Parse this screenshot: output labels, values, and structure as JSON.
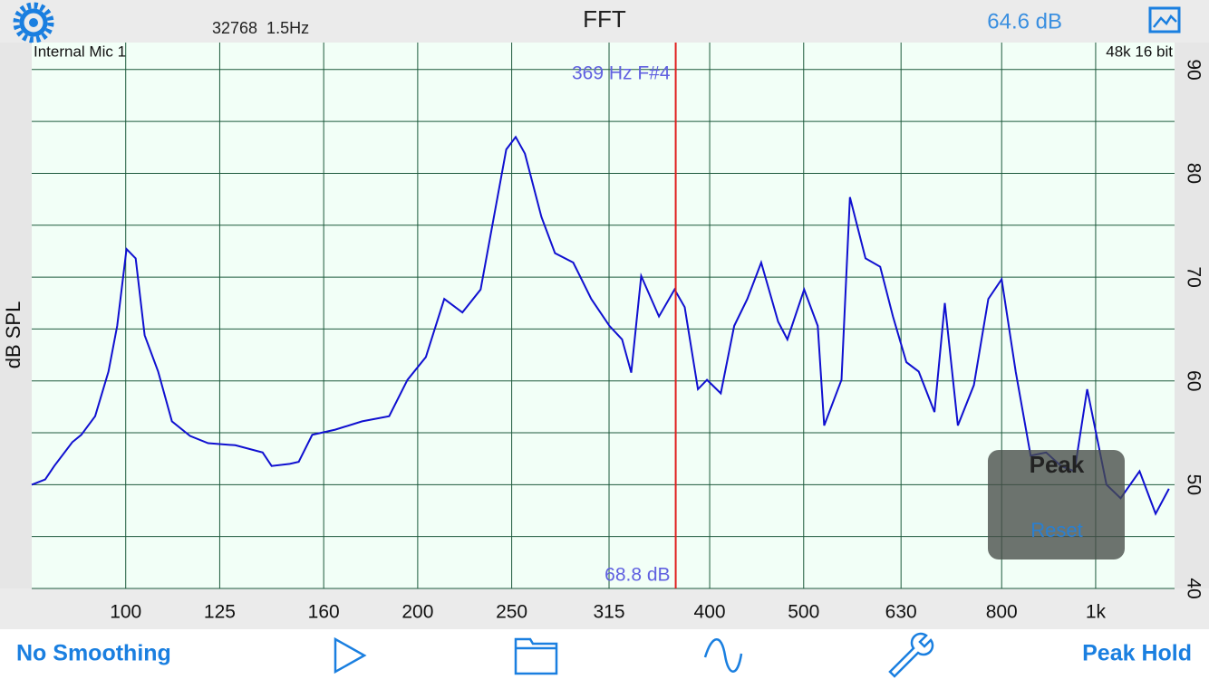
{
  "header": {
    "fft_size": "32768  1.5Hz",
    "title": "FFT",
    "level": "64.6 dB"
  },
  "input_label": "Internal Mic 1",
  "format_label": "48k 16 bit",
  "chart_data": {
    "type": "line",
    "ylabel": "dB SPL",
    "xscale": "log",
    "xlim": [
      80,
      1206
    ],
    "ylim": [
      40,
      92.6
    ],
    "xticks": [
      100,
      125,
      160,
      200,
      250,
      315,
      400,
      500,
      630,
      800,
      {
        "value": 1000,
        "label": "1k"
      }
    ],
    "yticks": [
      40,
      50,
      60,
      70,
      80,
      90
    ],
    "yminor": [
      45,
      55,
      65,
      75,
      85
    ],
    "grid": true,
    "color": "#1010d0",
    "cursor": {
      "x": 369,
      "freq_label": "369 Hz F#4",
      "level_label": "68.8 dB",
      "color": "#e02020"
    },
    "x": [
      80,
      82.6,
      84.4,
      88.1,
      90,
      93,
      96,
      98,
      100.2,
      102.4,
      104.6,
      108,
      111.6,
      116.5,
      121.6,
      129.7,
      138.4,
      141.4,
      147.6,
      150.8,
      155.7,
      164.4,
      175.3,
      186.9,
      195.2,
      203.9,
      213,
      222.4,
      232.2,
      240.1,
      246.8,
      252.4,
      258,
      268.3,
      277.1,
      289.3,
      302,
      315.3,
      324.9,
      332,
      340,
      354.6,
      368,
      377,
      389,
      397.5,
      410.7,
      424,
      437.4,
      452,
      470.6,
      481,
      500.6,
      517,
      525,
      547,
      558,
      579,
      599.6,
      618,
      638,
      657,
      682,
      699,
      721,
      749,
      775,
      800,
      827,
      857,
      889,
      921,
      951,
      980,
      1026,
      1061,
      1110,
      1153,
      1190
    ],
    "values": [
      50.0,
      50.5,
      51.8,
      54.1,
      54.8,
      56.6,
      60.9,
      65.3,
      72.7,
      71.8,
      64.4,
      60.9,
      56.1,
      54.7,
      54.0,
      53.8,
      53.1,
      51.8,
      52.0,
      52.2,
      54.8,
      55.3,
      56.1,
      56.6,
      60.1,
      62.3,
      67.9,
      66.6,
      68.8,
      76.2,
      82.3,
      83.5,
      81.9,
      75.8,
      72.3,
      71.4,
      67.9,
      65.3,
      64.0,
      60.8,
      70.1,
      66.2,
      68.8,
      67.1,
      59.2,
      60.1,
      58.8,
      65.3,
      67.9,
      71.4,
      65.7,
      64.0,
      68.8,
      65.3,
      55.7,
      60.1,
      77.7,
      71.8,
      71.0,
      66.2,
      61.8,
      60.9,
      57.0,
      67.5,
      55.7,
      59.6,
      67.9,
      69.8,
      60.9,
      52.8,
      53.1,
      51.8,
      51.3,
      59.2,
      50.0,
      48.7,
      51.3,
      47.2,
      49.6
    ]
  },
  "peak_panel": {
    "title": "Peak",
    "button": "Reset"
  },
  "toolbar": {
    "left": "No Smoothing",
    "right": "Peak Hold"
  }
}
